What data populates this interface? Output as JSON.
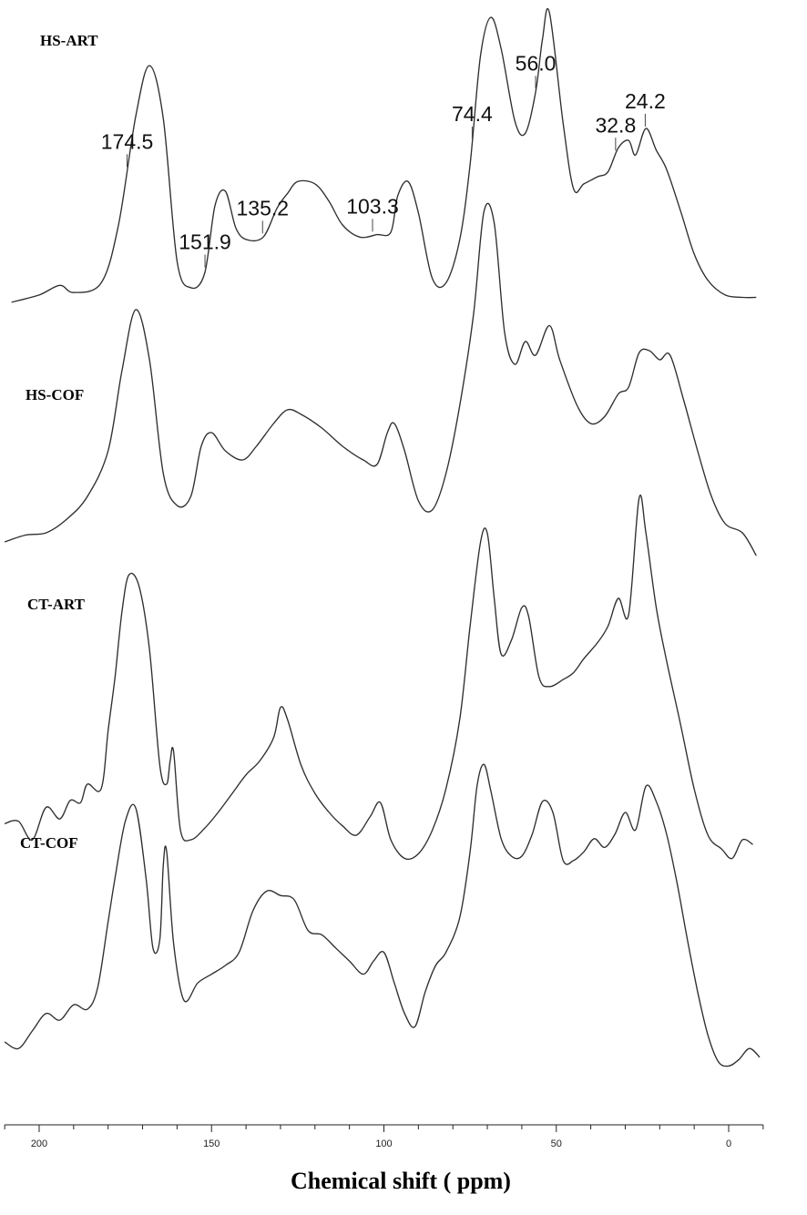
{
  "chart_data": {
    "type": "line",
    "xlabel": "Chemical shift ( ppm)",
    "xlim": [
      210,
      -10
    ],
    "reversed_x": true,
    "x_ticks": [
      200,
      150,
      100,
      50,
      0
    ],
    "tick_labels": [
      "200",
      "150",
      "100",
      "50",
      "0"
    ],
    "stacked": true,
    "grid": false,
    "series": [
      {
        "name": "HS-ART",
        "points": [
          [
            208,
            -0.12
          ],
          [
            200,
            -0.09
          ],
          [
            194,
            -0.05
          ],
          [
            190,
            -0.08
          ],
          [
            182,
            -0.04
          ],
          [
            177,
            0.2
          ],
          [
            172,
            0.65
          ],
          [
            168,
            0.86
          ],
          [
            164,
            0.64
          ],
          [
            160,
            0.05
          ],
          [
            156,
            -0.06
          ],
          [
            152,
            0.0
          ],
          [
            149,
            0.28
          ],
          [
            146,
            0.34
          ],
          [
            143,
            0.19
          ],
          [
            140,
            0.14
          ],
          [
            135,
            0.15
          ],
          [
            131,
            0.27
          ],
          [
            128,
            0.33
          ],
          [
            125,
            0.38
          ],
          [
            120,
            0.37
          ],
          [
            116,
            0.3
          ],
          [
            112,
            0.2
          ],
          [
            107,
            0.15
          ],
          [
            102,
            0.16
          ],
          [
            98,
            0.17
          ],
          [
            96,
            0.32
          ],
          [
            93,
            0.38
          ],
          [
            90,
            0.25
          ],
          [
            86,
            -0.02
          ],
          [
            82,
            -0.04
          ],
          [
            78,
            0.14
          ],
          [
            75,
            0.45
          ],
          [
            72,
            0.9
          ],
          [
            69,
            1.06
          ],
          [
            66,
            0.93
          ],
          [
            62,
            0.63
          ],
          [
            59,
            0.58
          ],
          [
            56,
            0.75
          ],
          [
            54,
            0.97
          ],
          [
            52,
            1.08
          ],
          [
            48,
            0.62
          ],
          [
            45,
            0.35
          ],
          [
            42,
            0.37
          ],
          [
            38,
            0.4
          ],
          [
            35,
            0.42
          ],
          [
            32,
            0.52
          ],
          [
            29,
            0.55
          ],
          [
            27,
            0.49
          ],
          [
            24,
            0.6
          ],
          [
            21,
            0.51
          ],
          [
            18,
            0.43
          ],
          [
            14,
            0.26
          ],
          [
            10,
            0.08
          ],
          [
            6,
            -0.03
          ],
          [
            1,
            -0.09
          ],
          [
            -4,
            -0.1
          ],
          [
            -8,
            -0.1
          ]
        ]
      },
      {
        "name": "HS-COF",
        "points": [
          [
            210,
            -0.2
          ],
          [
            204,
            -0.17
          ],
          [
            198,
            -0.16
          ],
          [
            192,
            -0.1
          ],
          [
            186,
            0.0
          ],
          [
            180,
            0.2
          ],
          [
            176,
            0.55
          ],
          [
            172,
            0.82
          ],
          [
            168,
            0.6
          ],
          [
            164,
            0.1
          ],
          [
            160,
            -0.04
          ],
          [
            156,
            0.0
          ],
          [
            153,
            0.22
          ],
          [
            150,
            0.28
          ],
          [
            146,
            0.2
          ],
          [
            141,
            0.16
          ],
          [
            137,
            0.22
          ],
          [
            132,
            0.32
          ],
          [
            128,
            0.38
          ],
          [
            124,
            0.36
          ],
          [
            118,
            0.3
          ],
          [
            112,
            0.22
          ],
          [
            106,
            0.16
          ],
          [
            102,
            0.14
          ],
          [
            99,
            0.28
          ],
          [
            97,
            0.32
          ],
          [
            94,
            0.2
          ],
          [
            90,
            -0.02
          ],
          [
            86,
            -0.06
          ],
          [
            82,
            0.1
          ],
          [
            78,
            0.4
          ],
          [
            74,
            0.8
          ],
          [
            71,
            1.25
          ],
          [
            68,
            1.2
          ],
          [
            65,
            0.72
          ],
          [
            62,
            0.58
          ],
          [
            59,
            0.68
          ],
          [
            56,
            0.62
          ],
          [
            52,
            0.75
          ],
          [
            49,
            0.6
          ],
          [
            44,
            0.4
          ],
          [
            40,
            0.32
          ],
          [
            36,
            0.35
          ],
          [
            32,
            0.45
          ],
          [
            29,
            0.48
          ],
          [
            26,
            0.63
          ],
          [
            23,
            0.64
          ],
          [
            20,
            0.6
          ],
          [
            17,
            0.62
          ],
          [
            13,
            0.42
          ],
          [
            9,
            0.2
          ],
          [
            5,
            0.0
          ],
          [
            1,
            -0.12
          ],
          [
            -4,
            -0.16
          ],
          [
            -8,
            -0.26
          ]
        ]
      },
      {
        "name": "CT-ART",
        "points": [
          [
            210,
            -0.35
          ],
          [
            206,
            -0.34
          ],
          [
            202,
            -0.42
          ],
          [
            198,
            -0.28
          ],
          [
            194,
            -0.33
          ],
          [
            191,
            -0.25
          ],
          [
            188,
            -0.26
          ],
          [
            186,
            -0.18
          ],
          [
            182,
            -0.2
          ],
          [
            180,
            0.05
          ],
          [
            178,
            0.28
          ],
          [
            176,
            0.56
          ],
          [
            174,
            0.72
          ],
          [
            171,
            0.67
          ],
          [
            168,
            0.4
          ],
          [
            165,
            -0.1
          ],
          [
            163,
            -0.18
          ],
          [
            162,
            -0.08
          ],
          [
            161,
            -0.04
          ],
          [
            159,
            -0.38
          ],
          [
            156,
            -0.42
          ],
          [
            152,
            -0.37
          ],
          [
            148,
            -0.3
          ],
          [
            144,
            -0.22
          ],
          [
            140,
            -0.14
          ],
          [
            136,
            -0.08
          ],
          [
            132,
            0.02
          ],
          [
            130,
            0.15
          ],
          [
            128,
            0.1
          ],
          [
            124,
            -0.1
          ],
          [
            120,
            -0.22
          ],
          [
            116,
            -0.3
          ],
          [
            112,
            -0.36
          ],
          [
            108,
            -0.4
          ],
          [
            104,
            -0.32
          ],
          [
            101,
            -0.26
          ],
          [
            98,
            -0.42
          ],
          [
            94,
            -0.5
          ],
          [
            90,
            -0.48
          ],
          [
            86,
            -0.38
          ],
          [
            82,
            -0.2
          ],
          [
            78,
            0.1
          ],
          [
            75,
            0.5
          ],
          [
            72,
            0.86
          ],
          [
            70,
            0.9
          ],
          [
            68,
            0.62
          ],
          [
            66,
            0.38
          ],
          [
            63,
            0.44
          ],
          [
            60,
            0.58
          ],
          [
            58,
            0.54
          ],
          [
            55,
            0.28
          ],
          [
            52,
            0.24
          ],
          [
            48,
            0.27
          ],
          [
            45,
            0.3
          ],
          [
            42,
            0.36
          ],
          [
            38,
            0.43
          ],
          [
            35,
            0.5
          ],
          [
            32,
            0.62
          ],
          [
            29,
            0.55
          ],
          [
            26,
            1.05
          ],
          [
            24,
            0.9
          ],
          [
            21,
            0.58
          ],
          [
            18,
            0.35
          ],
          [
            14,
            0.08
          ],
          [
            10,
            -0.2
          ],
          [
            6,
            -0.4
          ],
          [
            2,
            -0.46
          ],
          [
            -1,
            -0.5
          ],
          [
            -4,
            -0.42
          ],
          [
            -7,
            -0.44
          ]
        ]
      },
      {
        "name": "CT-COF",
        "points": [
          [
            210,
            -0.35
          ],
          [
            206,
            -0.38
          ],
          [
            202,
            -0.3
          ],
          [
            198,
            -0.22
          ],
          [
            194,
            -0.25
          ],
          [
            190,
            -0.18
          ],
          [
            186,
            -0.2
          ],
          [
            183,
            -0.1
          ],
          [
            180,
            0.2
          ],
          [
            178,
            0.4
          ],
          [
            175,
            0.66
          ],
          [
            172,
            0.72
          ],
          [
            169,
            0.4
          ],
          [
            167,
            0.08
          ],
          [
            165,
            0.12
          ],
          [
            164,
            0.46
          ],
          [
            163,
            0.52
          ],
          [
            161,
            0.1
          ],
          [
            158,
            -0.16
          ],
          [
            154,
            -0.08
          ],
          [
            150,
            -0.04
          ],
          [
            146,
            0.0
          ],
          [
            142,
            0.06
          ],
          [
            138,
            0.25
          ],
          [
            134,
            0.34
          ],
          [
            130,
            0.32
          ],
          [
            126,
            0.3
          ],
          [
            122,
            0.16
          ],
          [
            118,
            0.14
          ],
          [
            114,
            0.08
          ],
          [
            110,
            0.02
          ],
          [
            106,
            -0.04
          ],
          [
            103,
            0.02
          ],
          [
            100,
            0.06
          ],
          [
            97,
            -0.08
          ],
          [
            94,
            -0.22
          ],
          [
            91,
            -0.28
          ],
          [
            88,
            -0.12
          ],
          [
            85,
            0.0
          ],
          [
            82,
            0.06
          ],
          [
            78,
            0.22
          ],
          [
            75,
            0.52
          ],
          [
            73,
            0.82
          ],
          [
            71,
            0.92
          ],
          [
            69,
            0.8
          ],
          [
            66,
            0.58
          ],
          [
            63,
            0.5
          ],
          [
            60,
            0.5
          ],
          [
            57,
            0.6
          ],
          [
            54,
            0.75
          ],
          [
            51,
            0.7
          ],
          [
            48,
            0.48
          ],
          [
            45,
            0.48
          ],
          [
            42,
            0.52
          ],
          [
            39,
            0.58
          ],
          [
            36,
            0.54
          ],
          [
            33,
            0.6
          ],
          [
            30,
            0.7
          ],
          [
            27,
            0.62
          ],
          [
            24,
            0.82
          ],
          [
            21,
            0.75
          ],
          [
            18,
            0.6
          ],
          [
            15,
            0.38
          ],
          [
            12,
            0.12
          ],
          [
            9,
            -0.12
          ],
          [
            6,
            -0.32
          ],
          [
            3,
            -0.44
          ],
          [
            0,
            -0.46
          ],
          [
            -3,
            -0.43
          ],
          [
            -6,
            -0.38
          ],
          [
            -9,
            -0.42
          ]
        ]
      }
    ],
    "annotations": [
      {
        "label": "174.5",
        "x": 174.5
      },
      {
        "label": "151.9",
        "x": 151.9
      },
      {
        "label": "135.2",
        "x": 135.2
      },
      {
        "label": "103.3",
        "x": 103.3
      },
      {
        "label": "74.4",
        "x": 74.4
      },
      {
        "label": "56.0",
        "x": 56.0
      },
      {
        "label": "32.8",
        "x": 32.8
      },
      {
        "label": "24.2",
        "x": 24.2
      }
    ]
  },
  "labels": {
    "hs_art": "HS-ART",
    "hs_cof": "HS-COF",
    "ct_art": "CT-ART",
    "ct_cof": "CT-COF",
    "xaxis": "Chemical shift ( ppm)"
  }
}
